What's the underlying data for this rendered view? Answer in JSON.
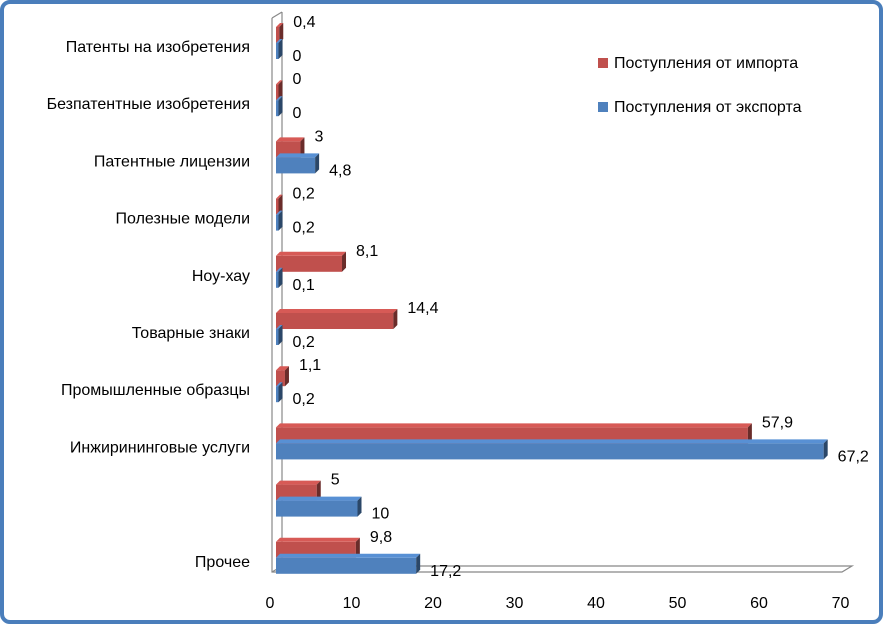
{
  "chart_data": {
    "type": "bar",
    "orientation": "horizontal",
    "style": "3d-clustered",
    "categories": [
      "Патенты на изобретения",
      "Безпатентные изобретения",
      "Патентные лицензии",
      "Полезные модели",
      "Ноу-хау",
      "Товарные знаки ",
      "Промышленные образцы",
      "Инжирининговые услуги",
      "",
      "Прочее"
    ],
    "series": [
      {
        "name": "Поступления от импорта",
        "color": "#c0504d",
        "values": [
          0.4,
          0,
          3,
          0.2,
          8.1,
          14.4,
          1.1,
          57.9,
          5,
          9.8
        ],
        "labels": [
          "0,4",
          "0",
          "3",
          "0,2",
          "8,1",
          "14,4",
          "1,1",
          "57,9",
          "5",
          "9,8"
        ]
      },
      {
        "name": "Поступления от экспорта",
        "color": "#4f81bd",
        "values": [
          0,
          0,
          4.8,
          0.2,
          0.1,
          0.2,
          0.2,
          67.2,
          10,
          17.2
        ],
        "labels": [
          "0",
          "0",
          "4,8",
          "0,2",
          "0,1",
          "0,2",
          "0,2",
          "67,2",
          "10",
          "17,2"
        ]
      }
    ],
    "xlim": [
      0,
      70
    ],
    "xticks": [
      "0",
      "10",
      "20",
      "30",
      "40",
      "50",
      "60",
      "70"
    ],
    "title": "",
    "xlabel": "",
    "ylabel": "",
    "grid": false,
    "legend_position": "top-right"
  }
}
